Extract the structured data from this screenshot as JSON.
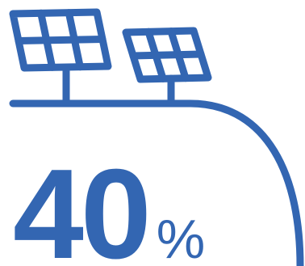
{
  "colors": {
    "primary": "#3366b2",
    "background": "#ffffff"
  },
  "icons": {
    "left_panel": "solar-panel-icon",
    "right_panel": "solar-panel-icon",
    "horizon": "ground-curve-icon"
  },
  "stat": {
    "value": "40",
    "unit": "%"
  }
}
